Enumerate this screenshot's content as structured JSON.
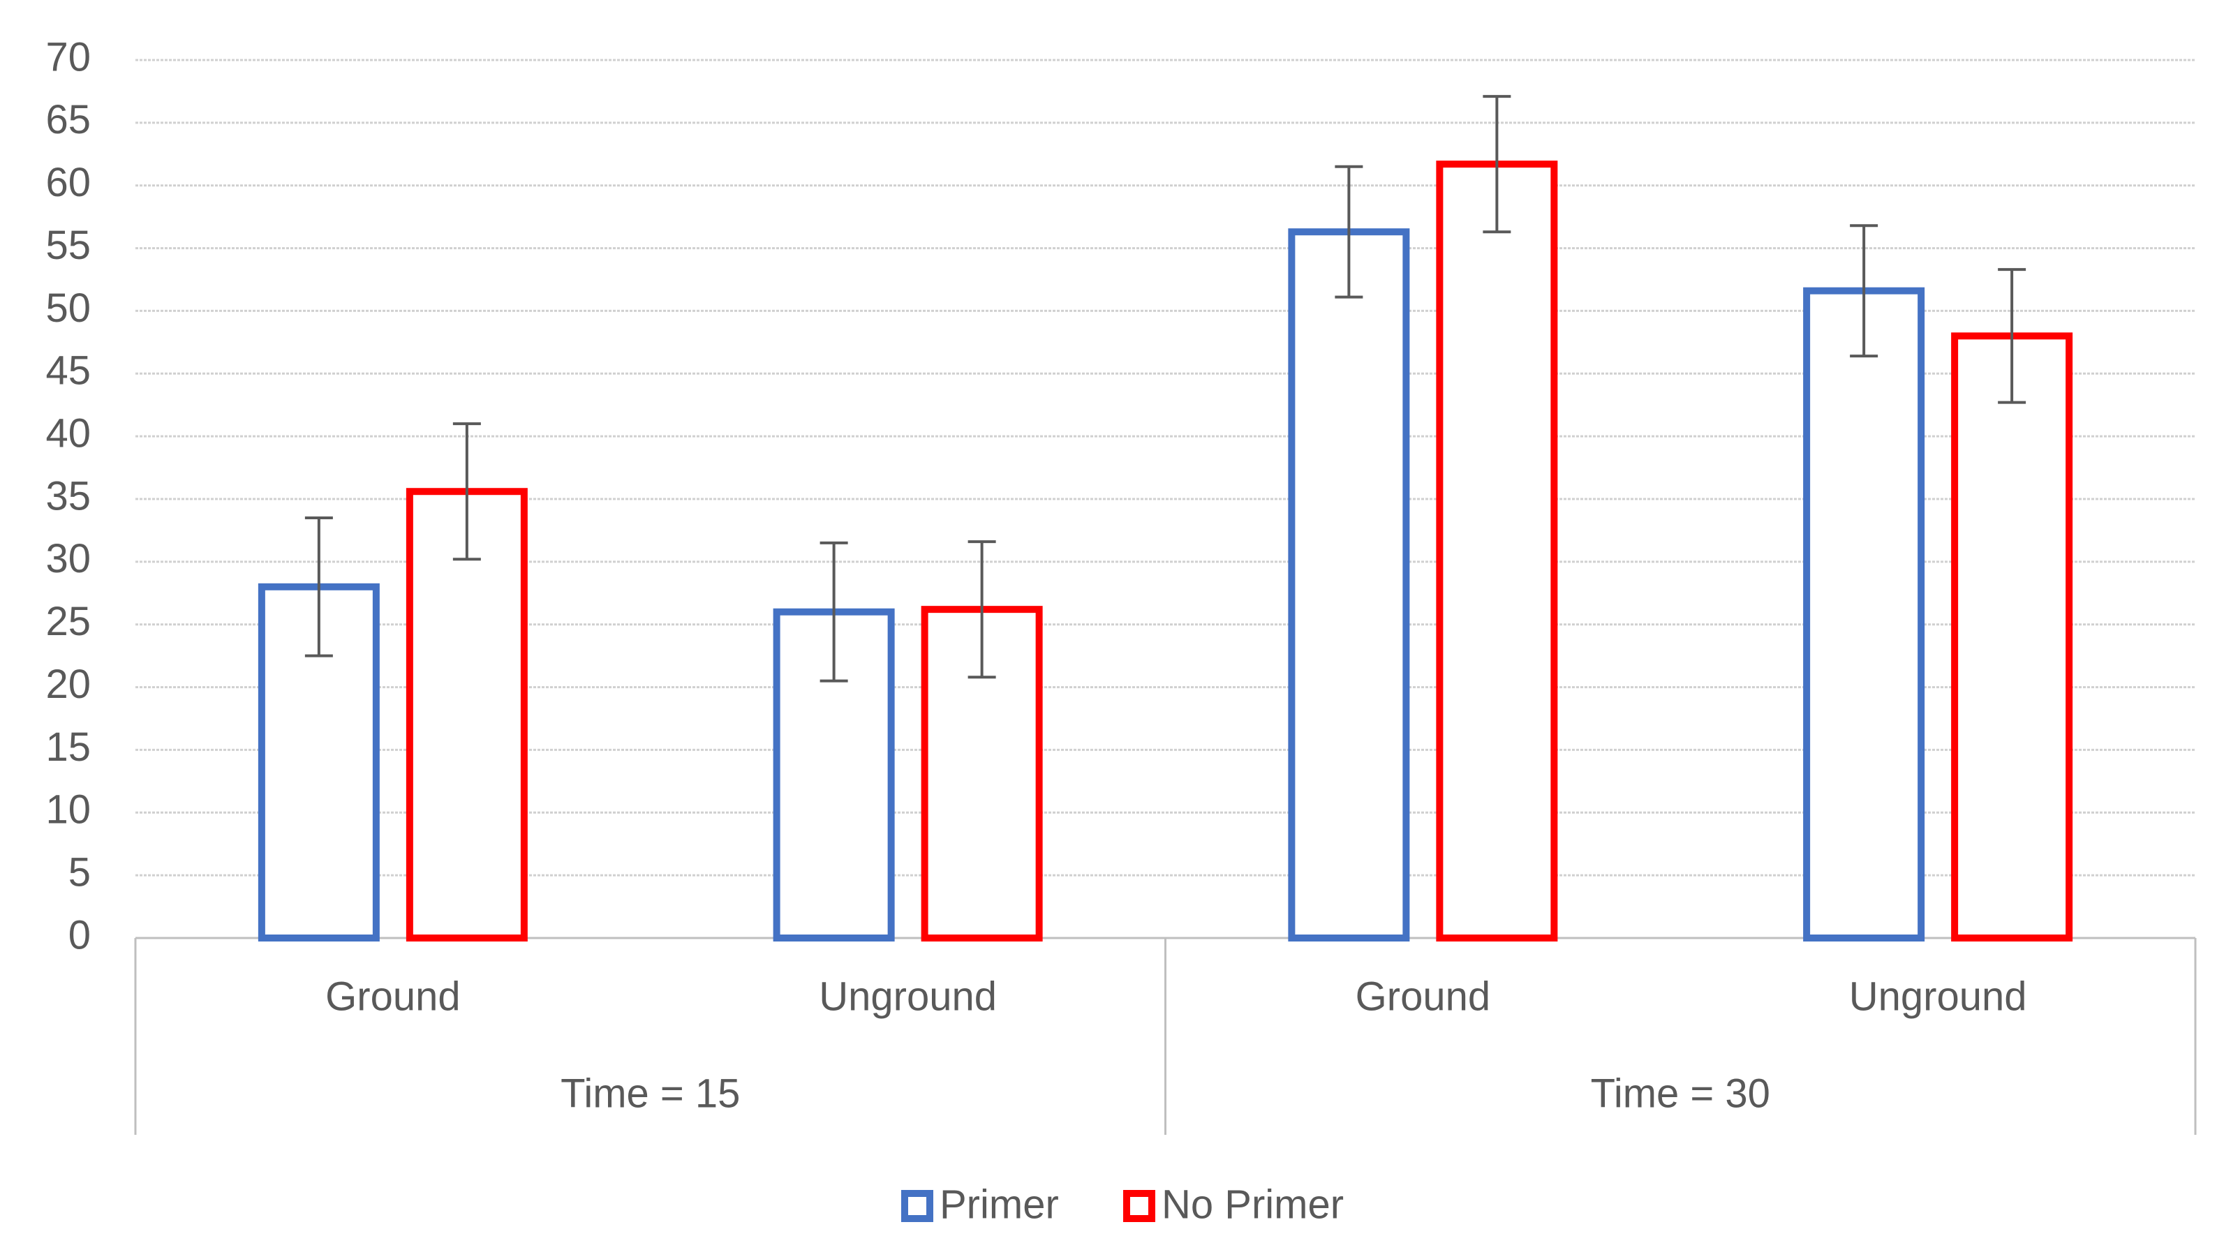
{
  "chart_data": {
    "type": "bar",
    "category_groups": [
      {
        "name": "Time = 15",
        "categories": [
          "Ground",
          "Unground"
        ]
      },
      {
        "name": "Time = 30",
        "categories": [
          "Ground",
          "Unground"
        ]
      }
    ],
    "series": [
      {
        "name": "Primer",
        "color": "#4472c4",
        "values": [
          28,
          26,
          56.3,
          51.6
        ],
        "errors": [
          5.5,
          5.5,
          5.2,
          5.2
        ]
      },
      {
        "name": "No Primer",
        "color": "#ff0000",
        "values": [
          35.6,
          26.2,
          61.7,
          48
        ],
        "errors": [
          5.4,
          5.4,
          5.4,
          5.3
        ]
      }
    ],
    "ylim": [
      0,
      70
    ],
    "yticks": [
      0,
      5,
      10,
      15,
      20,
      25,
      30,
      35,
      40,
      45,
      50,
      55,
      60,
      65,
      70
    ],
    "grid": true,
    "legend": "bottom"
  }
}
